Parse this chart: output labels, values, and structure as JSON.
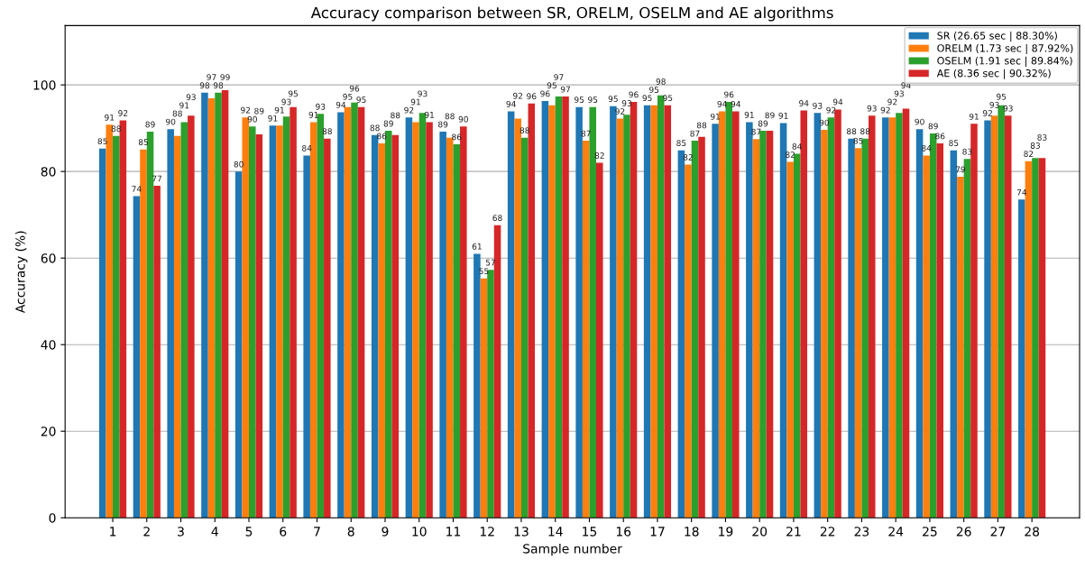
{
  "chart_data": {
    "type": "bar",
    "title": "Accuracy comparison between SR, ORELM, OSELM and AE algorithms",
    "xlabel": "Sample number",
    "ylabel": "Accuracy (%)",
    "categories": [
      "1",
      "2",
      "3",
      "4",
      "5",
      "6",
      "7",
      "8",
      "9",
      "10",
      "11",
      "12",
      "13",
      "14",
      "15",
      "16",
      "17",
      "18",
      "19",
      "20",
      "21",
      "22",
      "23",
      "24",
      "25",
      "26",
      "27",
      "28"
    ],
    "series": [
      {
        "name": "SR (26.65 sec | 88.30%)",
        "color": "#1f77b4",
        "values": [
          85.3,
          74.3,
          89.8,
          98.2,
          80.0,
          90.6,
          83.7,
          93.7,
          88.4,
          92.5,
          89.2,
          61.0,
          93.9,
          96.3,
          94.9,
          95.1,
          95.3,
          84.9,
          91.0,
          91.4,
          91.2,
          93.5,
          87.6,
          92.5,
          89.8,
          84.9,
          91.8,
          73.5
        ],
        "value_labels": [
          "85",
          "74",
          "90",
          "98",
          "80",
          "91",
          "84",
          "94",
          "88",
          "92",
          "89",
          "61",
          "94",
          "96",
          "95",
          "95",
          "95",
          "85",
          "91",
          "91",
          "91",
          "93",
          "88",
          "92",
          "90",
          "85",
          "92",
          "74"
        ]
      },
      {
        "name": "ORELM (1.73 sec | 87.92%)",
        "color": "#ff7f0e",
        "values": [
          90.8,
          85.1,
          88.2,
          96.9,
          92.5,
          90.6,
          91.4,
          94.9,
          86.5,
          91.4,
          87.8,
          55.3,
          92.2,
          95.3,
          87.1,
          92.2,
          95.3,
          81.6,
          93.9,
          87.5,
          82.2,
          89.6,
          85.4,
          92.5,
          83.7,
          78.8,
          92.9,
          82.4
        ],
        "value_labels": [
          "91",
          "85",
          "88",
          "97",
          "92",
          "91",
          "91",
          "95",
          "86",
          "91",
          "88",
          "55",
          "92",
          "95",
          "87",
          "92",
          "95",
          "82",
          "94",
          "87",
          "82",
          "90",
          "85",
          "92",
          "84",
          "79",
          "93",
          "82"
        ]
      },
      {
        "name": "OSELM (1.91 sec | 89.84%)",
        "color": "#2ca02c",
        "values": [
          88.2,
          89.2,
          91.4,
          98.2,
          90.4,
          92.7,
          93.3,
          95.9,
          89.4,
          93.5,
          86.3,
          57.3,
          87.8,
          97.3,
          94.9,
          93.1,
          97.6,
          87.1,
          96.1,
          89.4,
          84.1,
          92.5,
          87.6,
          93.5,
          88.8,
          82.9,
          95.3,
          83.1
        ],
        "value_labels": [
          "88",
          "89",
          "91",
          "98",
          "90",
          "93",
          "93",
          "96",
          "89",
          "93",
          "86",
          "57",
          "88",
          "97",
          "95",
          "93",
          "98",
          "87",
          "96",
          "89",
          "84",
          "92",
          "88",
          "93",
          "89",
          "83",
          "95",
          "83"
        ]
      },
      {
        "name": "AE (8.36 sec | 90.32%)",
        "color": "#d62728",
        "values": [
          91.8,
          76.7,
          92.9,
          98.8,
          88.6,
          94.9,
          87.6,
          94.9,
          88.4,
          91.4,
          90.4,
          67.6,
          95.7,
          97.3,
          82.0,
          96.1,
          95.3,
          88.0,
          93.9,
          89.4,
          94.1,
          94.3,
          92.9,
          94.5,
          86.5,
          91.0,
          92.9,
          83.1
        ],
        "value_labels": [
          "92",
          "77",
          "93",
          "99",
          "89",
          "95",
          "88",
          "95",
          "88",
          "91",
          "90",
          "68",
          "96",
          "97",
          "82",
          "96",
          "95",
          "88",
          "94",
          "89",
          "94",
          "94",
          "93",
          "94",
          "86",
          "91",
          "93",
          "83"
        ]
      }
    ],
    "ylim": [
      0,
      113.7
    ],
    "yticks": [
      0,
      20,
      40,
      60,
      80,
      100
    ],
    "grid": "y",
    "legend": "top right"
  }
}
